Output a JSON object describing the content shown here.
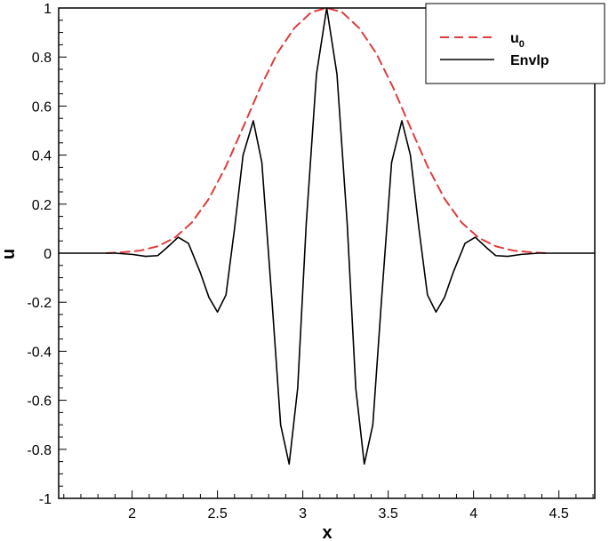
{
  "chart_data": {
    "type": "line",
    "xlabel": "x",
    "ylabel": "u",
    "xlim": [
      1.57,
      4.71
    ],
    "ylim": [
      -1,
      1
    ],
    "xticks": [
      2,
      2.5,
      3,
      3.5,
      4,
      4.5
    ],
    "xtick_labels": [
      "2",
      "2.5",
      "3",
      "3.5",
      "4",
      "4.5"
    ],
    "yticks": [
      -1,
      -0.8,
      -0.6,
      -0.4,
      -0.2,
      0,
      0.2,
      0.4,
      0.6,
      0.8,
      1
    ],
    "ytick_labels": [
      "-1",
      "-0.8",
      "-0.6",
      "-0.4",
      "-0.2",
      "0",
      "0.2",
      "0.4",
      "0.6",
      "0.8",
      "1"
    ],
    "grid": false,
    "legend_position": "top-right",
    "series": [
      {
        "name": "u",
        "name_subscript": "0",
        "style": "dashed",
        "color": "#e03c3c",
        "x": [
          1.85,
          1.95,
          2.05,
          2.15,
          2.25,
          2.35,
          2.45,
          2.55,
          2.65,
          2.75,
          2.85,
          2.95,
          3.05,
          3.14,
          3.23,
          3.33,
          3.43,
          3.53,
          3.63,
          3.73,
          3.83,
          3.93,
          4.03,
          4.13,
          4.23,
          4.33,
          4.43
        ],
        "y": [
          0.0,
          0.004,
          0.011,
          0.028,
          0.063,
          0.125,
          0.222,
          0.355,
          0.513,
          0.674,
          0.815,
          0.918,
          0.983,
          1.0,
          0.983,
          0.918,
          0.815,
          0.674,
          0.513,
          0.355,
          0.222,
          0.125,
          0.063,
          0.028,
          0.011,
          0.004,
          0.0
        ]
      },
      {
        "name": "Envlp",
        "style": "solid",
        "color": "#000000",
        "x": [
          1.57,
          1.9,
          2.0,
          2.08,
          2.15,
          2.2,
          2.27,
          2.33,
          2.4,
          2.45,
          2.5,
          2.55,
          2.6,
          2.65,
          2.71,
          2.76,
          2.82,
          2.87,
          2.92,
          2.97,
          3.02,
          3.08,
          3.14,
          3.2,
          3.26,
          3.31,
          3.36,
          3.41,
          3.46,
          3.52,
          3.58,
          3.63,
          3.68,
          3.73,
          3.78,
          3.83,
          3.88,
          3.95,
          4.01,
          4.08,
          4.13,
          4.2,
          4.28,
          4.38,
          4.71
        ],
        "y": [
          0.0,
          0.0,
          -0.005,
          -0.013,
          -0.01,
          0.02,
          0.065,
          0.04,
          -0.08,
          -0.18,
          -0.24,
          -0.17,
          0.1,
          0.4,
          0.54,
          0.37,
          -0.2,
          -0.7,
          -0.86,
          -0.55,
          0.12,
          0.73,
          1.0,
          0.73,
          0.12,
          -0.55,
          -0.86,
          -0.7,
          -0.2,
          0.37,
          0.54,
          0.4,
          0.1,
          -0.17,
          -0.24,
          -0.18,
          -0.08,
          0.04,
          0.065,
          0.02,
          -0.01,
          -0.013,
          -0.005,
          0.0,
          0.0
        ]
      }
    ]
  }
}
